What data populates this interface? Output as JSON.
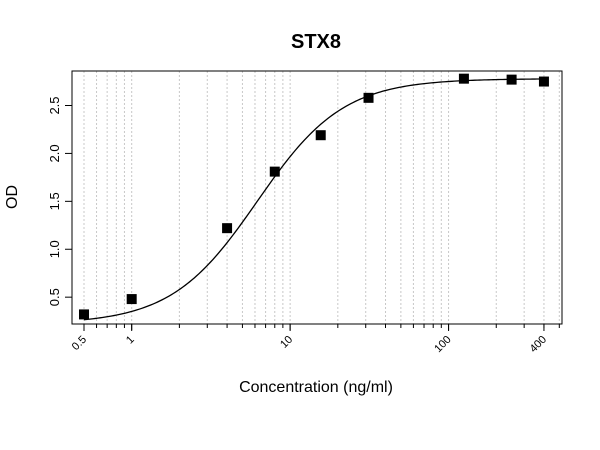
{
  "chart_data": {
    "type": "scatter",
    "title": "STX8",
    "xlabel": "Concentration (ng/ml)",
    "ylabel": "OD",
    "x_scale": "log",
    "xlim": [
      0.42,
      520
    ],
    "ylim": [
      0.22,
      2.86
    ],
    "x_tick_labels": [
      {
        "value": 0.5,
        "label": "0.5"
      },
      {
        "value": 1,
        "label": "1"
      },
      {
        "value": 10,
        "label": "10"
      },
      {
        "value": 100,
        "label": "100"
      },
      {
        "value": 400,
        "label": "400"
      }
    ],
    "y_tick_labels": [
      {
        "value": 0.5,
        "label": "0.5"
      },
      {
        "value": 1.0,
        "label": "1.0"
      },
      {
        "value": 1.5,
        "label": "1.5"
      },
      {
        "value": 2.0,
        "label": "2.0"
      },
      {
        "value": 2.5,
        "label": "2.5"
      }
    ],
    "grid": "vertical dotted at log minor ticks",
    "points": [
      {
        "x": 0.5,
        "y": 0.32
      },
      {
        "x": 1,
        "y": 0.48
      },
      {
        "x": 4,
        "y": 1.22
      },
      {
        "x": 8,
        "y": 1.81
      },
      {
        "x": 15.6,
        "y": 2.19
      },
      {
        "x": 31.25,
        "y": 2.58
      },
      {
        "x": 125,
        "y": 2.78
      },
      {
        "x": 250,
        "y": 2.77
      },
      {
        "x": 400,
        "y": 2.75
      }
    ],
    "fit": {
      "type": "4PL",
      "bottom": 0.22,
      "top": 2.78,
      "ec50": 6.2,
      "hill": 1.6
    }
  }
}
